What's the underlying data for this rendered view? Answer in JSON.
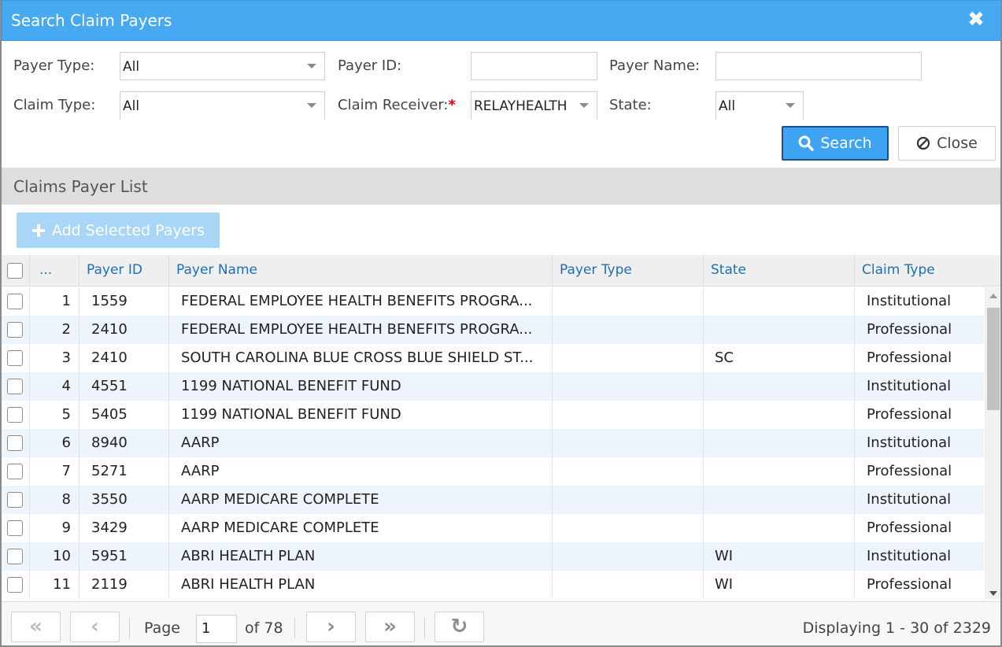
{
  "dialog": {
    "title": "Search Claim Payers",
    "close_icon": "close-x-icon"
  },
  "filters": {
    "payer_type_label": "Payer Type:",
    "payer_type_value": "All",
    "payer_id_label": "Payer ID:",
    "payer_id_value": "",
    "payer_name_label": "Payer Name:",
    "payer_name_value": "",
    "claim_type_label": "Claim Type:",
    "claim_type_value": "All",
    "claim_receiver_label": "Claim Receiver:",
    "claim_receiver_required": "*",
    "claim_receiver_value": "RELAYHEALTH",
    "state_label": "State:",
    "state_value": "All"
  },
  "actions": {
    "search_label": "Search",
    "close_label": "Close"
  },
  "section": {
    "title": "Claims Payer List",
    "add_label": "Add Selected Payers"
  },
  "grid": {
    "columns": {
      "rownum": "...",
      "payer_id": "Payer ID",
      "payer_name": "Payer Name",
      "payer_type": "Payer Type",
      "state": "State",
      "claim_type": "Claim Type"
    },
    "rows": [
      {
        "n": "1",
        "payer_id": "1559",
        "payer_name": "FEDERAL EMPLOYEE HEALTH BENEFITS PROGRA...",
        "payer_type": "",
        "state": "",
        "claim_type": "Institutional"
      },
      {
        "n": "2",
        "payer_id": "2410",
        "payer_name": "FEDERAL EMPLOYEE HEALTH BENEFITS PROGRA...",
        "payer_type": "",
        "state": "",
        "claim_type": "Professional"
      },
      {
        "n": "3",
        "payer_id": "2410",
        "payer_name": "SOUTH CAROLINA BLUE CROSS BLUE SHIELD ST...",
        "payer_type": "",
        "state": "SC",
        "claim_type": "Professional"
      },
      {
        "n": "4",
        "payer_id": "4551",
        "payer_name": "1199 NATIONAL BENEFIT FUND",
        "payer_type": "",
        "state": "",
        "claim_type": "Institutional"
      },
      {
        "n": "5",
        "payer_id": "5405",
        "payer_name": "1199 NATIONAL BENEFIT FUND",
        "payer_type": "",
        "state": "",
        "claim_type": "Professional"
      },
      {
        "n": "6",
        "payer_id": "8940",
        "payer_name": "AARP",
        "payer_type": "",
        "state": "",
        "claim_type": "Institutional"
      },
      {
        "n": "7",
        "payer_id": "5271",
        "payer_name": "AARP",
        "payer_type": "",
        "state": "",
        "claim_type": "Professional"
      },
      {
        "n": "8",
        "payer_id": "3550",
        "payer_name": "AARP MEDICARE COMPLETE",
        "payer_type": "",
        "state": "",
        "claim_type": "Institutional"
      },
      {
        "n": "9",
        "payer_id": "3429",
        "payer_name": "AARP MEDICARE COMPLETE",
        "payer_type": "",
        "state": "",
        "claim_type": "Professional"
      },
      {
        "n": "10",
        "payer_id": "5951",
        "payer_name": "ABRI HEALTH PLAN",
        "payer_type": "",
        "state": "WI",
        "claim_type": "Institutional"
      },
      {
        "n": "11",
        "payer_id": "2119",
        "payer_name": "ABRI HEALTH PLAN",
        "payer_type": "",
        "state": "WI",
        "claim_type": "Professional"
      }
    ]
  },
  "pager": {
    "page_label": "Page",
    "page_value": "1",
    "of_label": "of 78",
    "display_text": "Displaying 1 - 30 of 2329",
    "first_glyph": "«",
    "prev_glyph": "‹",
    "next_glyph": "›",
    "last_glyph": "»",
    "refresh_glyph": "↻"
  },
  "colors": {
    "titlebar": "#47a9f2",
    "primary_button": "#3ea3f0",
    "disabled_button": "#a9d6f7",
    "header_link": "#1d6fb8",
    "alt_row": "#eef4fb"
  }
}
